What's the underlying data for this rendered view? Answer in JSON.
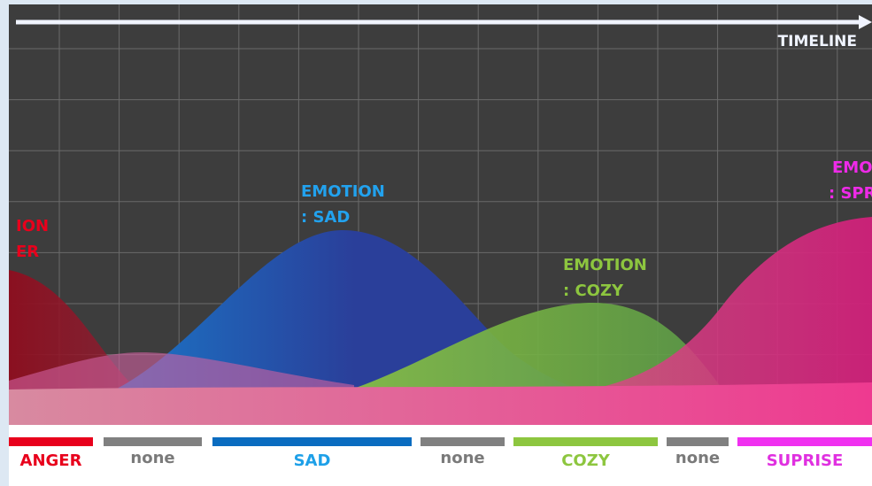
{
  "timeline": "TIMELINE",
  "emotions": [
    {
      "lines": [
        "ION",
        "ER"
      ]
    },
    {
      "lines": [
        "EMOTION",
        ": SAD"
      ]
    },
    {
      "lines": [
        "EMOTION",
        ": COZY"
      ]
    },
    {
      "lines": [
        "EMO",
        ": SPR"
      ]
    }
  ],
  "segments": [
    "ANGER",
    "none",
    "SAD",
    "none",
    "COZY",
    "none",
    "SUPRISE"
  ]
}
